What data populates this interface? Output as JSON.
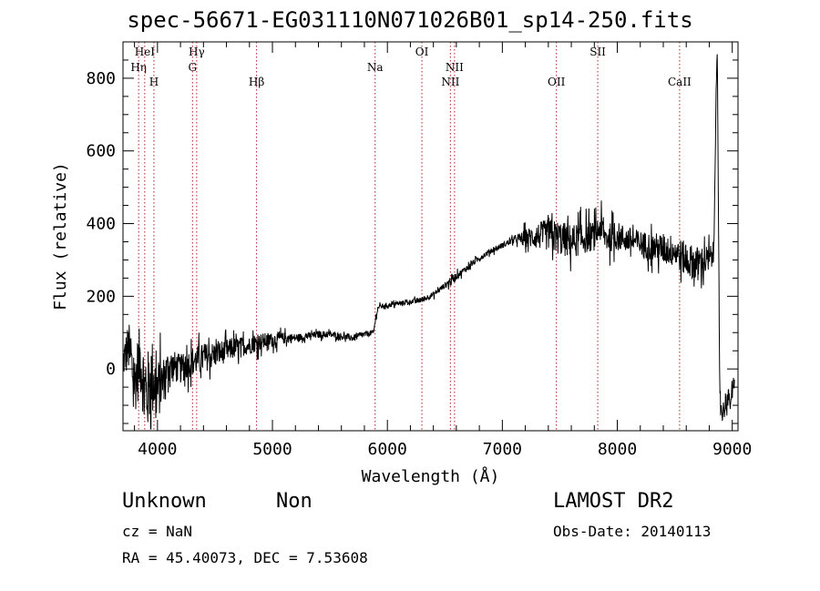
{
  "header": {
    "title": "spec-56671-EG031110N071026B01_sp14-250.fits"
  },
  "footer": {
    "class_label": "Unknown",
    "subclass_label": "Non",
    "survey": "LAMOST DR2",
    "cz": "cz = NaN",
    "obs_date": "Obs-Date: 20140113",
    "radec": "RA =  45.40073, DEC =   7.53608"
  },
  "colors": {
    "line": "#000000",
    "markers": "#b22222"
  },
  "chart_data": {
    "type": "line",
    "title": "spec-56671-EG031110N071026B01_sp14-250.fits",
    "xlabel": "Wavelength (Å)",
    "ylabel": "Flux (relative)",
    "xlim": [
      3700,
      9050
    ],
    "ylim": [
      -170,
      900
    ],
    "grid": false,
    "xticks": [
      4000,
      5000,
      6000,
      7000,
      8000,
      9000
    ],
    "yticks": [
      0,
      200,
      400,
      600,
      800
    ],
    "series": [
      {
        "x": [
          3700,
          3750,
          3800,
          3850,
          3900,
          3950,
          4000,
          4050,
          4100,
          4200,
          4300,
          4400,
          4500,
          4600,
          4700,
          4800,
          4900,
          5000,
          5100,
          5200,
          5300,
          5400,
          5500,
          5600,
          5700,
          5800,
          5880,
          5900,
          5920,
          6000,
          6100,
          6200,
          6300,
          6400,
          6500,
          6560,
          6600,
          6700,
          6800,
          6900,
          7000,
          7100,
          7200,
          7300,
          7400,
          7500,
          7600,
          7700,
          7800,
          7850,
          7900,
          8000,
          8100,
          8200,
          8300,
          8400,
          8500,
          8600,
          8700,
          8800,
          8840,
          8860,
          8870,
          8880,
          8890,
          8900,
          8920,
          8950,
          8980,
          9000,
          9020
        ],
        "y": [
          20,
          60,
          -40,
          30,
          -80,
          -20,
          -60,
          -30,
          10,
          0,
          20,
          30,
          40,
          50,
          60,
          65,
          75,
          80,
          85,
          85,
          90,
          95,
          95,
          90,
          85,
          95,
          100,
          145,
          170,
          175,
          180,
          185,
          190,
          205,
          230,
          245,
          255,
          280,
          305,
          325,
          340,
          355,
          360,
          365,
          370,
          360,
          350,
          360,
          365,
          390,
          360,
          365,
          355,
          345,
          335,
          330,
          325,
          300,
          290,
          300,
          320,
          780,
          880,
          400,
          -20,
          -100,
          -120,
          -80,
          -90,
          -70,
          -40
        ],
        "noise": [
          60,
          90,
          110,
          120,
          140,
          140,
          110,
          80,
          60,
          50,
          50,
          50,
          45,
          40,
          35,
          30,
          30,
          25,
          20,
          15,
          12,
          12,
          12,
          12,
          12,
          10,
          10,
          10,
          8,
          8,
          8,
          8,
          10,
          10,
          10,
          20,
          12,
          10,
          10,
          10,
          10,
          10,
          30,
          45,
          55,
          60,
          60,
          55,
          50,
          50,
          50,
          50,
          45,
          45,
          50,
          55,
          55,
          60,
          60,
          50,
          40,
          20,
          10,
          30,
          40,
          50,
          40,
          40,
          40,
          30,
          20
        ]
      }
    ],
    "lines": [
      {
        "label": "Hη",
        "x": 3836,
        "row": 2
      },
      {
        "label": "HeI",
        "x": 3889,
        "row": 1
      },
      {
        "label": "H",
        "x": 3969,
        "row": 3
      },
      {
        "label": "Hγ",
        "x": 4341,
        "row": 1
      },
      {
        "label": "G",
        "x": 4305,
        "row": 2
      },
      {
        "label": "Hβ",
        "x": 4862,
        "row": 3
      },
      {
        "label": "Na",
        "x": 5893,
        "row": 2
      },
      {
        "label": "OI",
        "x": 6300,
        "row": 1
      },
      {
        "label": "NII",
        "x": 6548,
        "row": 3
      },
      {
        "label": "NII",
        "x": 6584,
        "row": 2
      },
      {
        "label": "OII",
        "x": 7470,
        "row": 3
      },
      {
        "label": "SII",
        "x": 7830,
        "row": 1
      },
      {
        "label": "CaII",
        "x": 8542,
        "row": 3
      }
    ]
  }
}
